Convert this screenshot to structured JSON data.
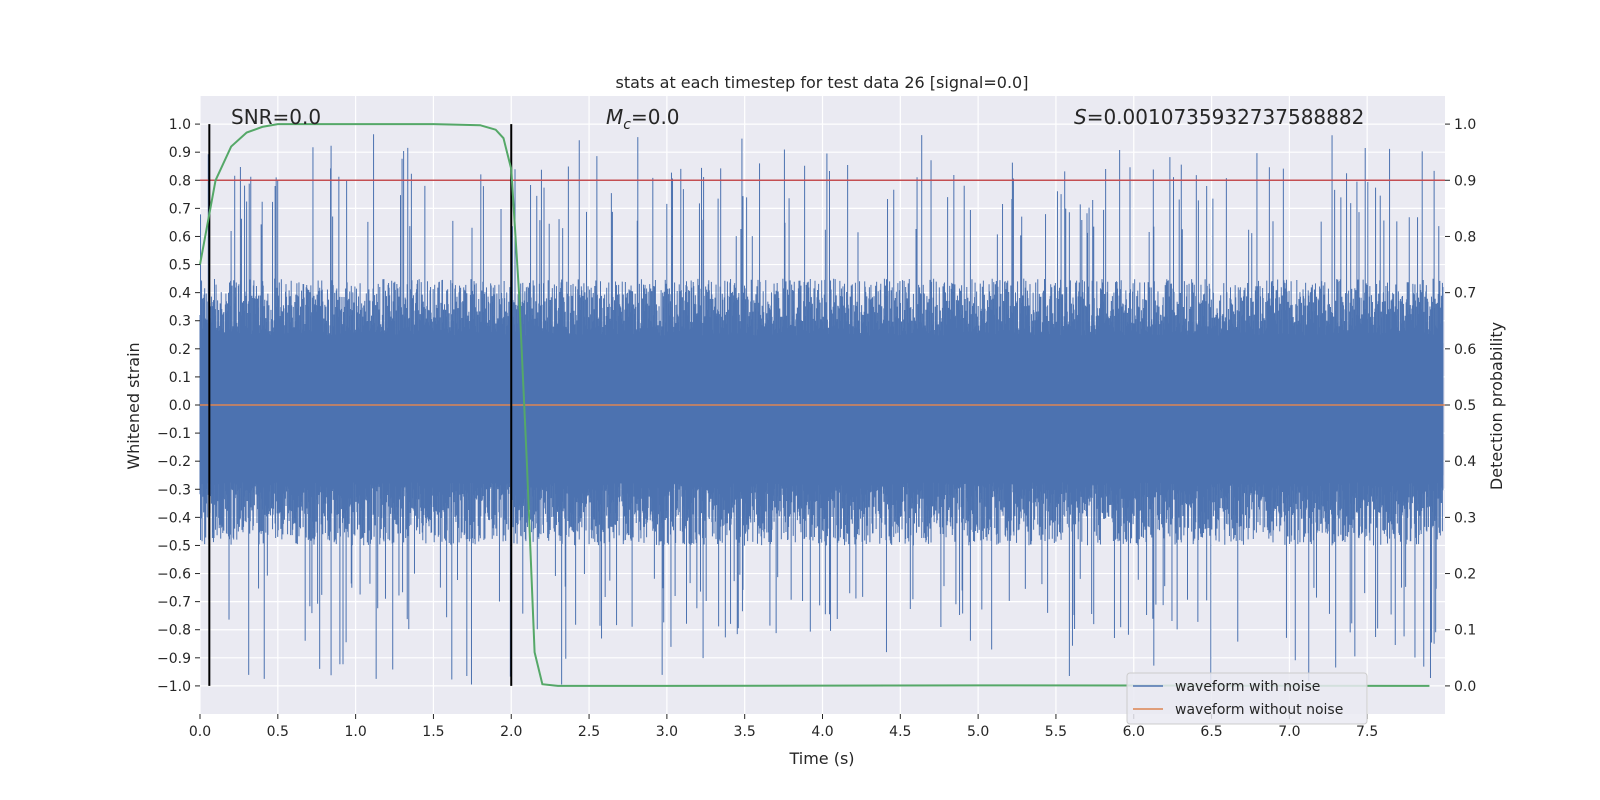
{
  "chart_data": {
    "type": "line",
    "title": "stats at each timestep for test data 26 [signal=0.0]",
    "xlabel": "Time (s)",
    "ylabel_left": "Whitened strain",
    "ylabel_right": "Detection probability",
    "xlim": [
      0.0,
      8.0
    ],
    "ylim_left": [
      -1.1,
      1.1
    ],
    "ylim_right": [
      -0.05,
      1.05
    ],
    "xticks": [
      "0.0",
      "0.5",
      "1.0",
      "1.5",
      "2.0",
      "2.5",
      "3.0",
      "3.5",
      "4.0",
      "4.5",
      "5.0",
      "5.5",
      "6.0",
      "6.5",
      "7.0",
      "7.5"
    ],
    "yticks_left": [
      "1.0",
      "0.9",
      "0.8",
      "0.7",
      "0.6",
      "0.5",
      "0.4",
      "0.3",
      "0.2",
      "0.1",
      "0.0",
      "-0.1",
      "-0.2",
      "-0.3",
      "-0.4",
      "-0.5",
      "-0.6",
      "-0.7",
      "-0.8",
      "-0.9",
      "-1.0"
    ],
    "yticks_right": [
      "1.0",
      "0.9",
      "0.8",
      "0.7",
      "0.6",
      "0.5",
      "0.4",
      "0.3",
      "0.2",
      "0.1",
      "0.0"
    ],
    "annotations": {
      "snr": "SNR=0.0",
      "mc_symbol": "M",
      "mc_sub": "c",
      "mc_value": "=0.0",
      "s_symbol": "S",
      "s_value": "=0.0010735932737588882"
    },
    "legend": {
      "position": "lower right",
      "entries": [
        "waveform with noise",
        "waveform without noise"
      ]
    },
    "vlines_x": [
      0.06,
      2.0
    ],
    "threshold_right": 0.9,
    "waveform_without_noise": 0.0,
    "noise_envelope": {
      "typical_max": 0.45,
      "typical_min": -0.5,
      "peak_max": 0.97,
      "peak_min": -1.0
    },
    "detection_probability": {
      "x": [
        0.0,
        0.1,
        0.2,
        0.3,
        0.4,
        0.5,
        1.0,
        1.5,
        1.8,
        1.9,
        1.95,
        2.0,
        2.05,
        2.1,
        2.15,
        2.2,
        2.3,
        3.0,
        5.0,
        7.9
      ],
      "y": [
        0.75,
        0.9,
        0.96,
        0.985,
        0.995,
        1.0,
        1.0,
        1.0,
        0.998,
        0.99,
        0.975,
        0.92,
        0.7,
        0.4,
        0.06,
        0.003,
        0.0,
        0.0,
        0.001,
        0.0
      ]
    },
    "colors": {
      "noise": "#4c72b0",
      "clean": "#dd8452",
      "probability": "#55a868",
      "threshold": "#c44e52",
      "vline": "#000000",
      "background": "#eaeaf2",
      "grid": "#ffffff"
    }
  }
}
